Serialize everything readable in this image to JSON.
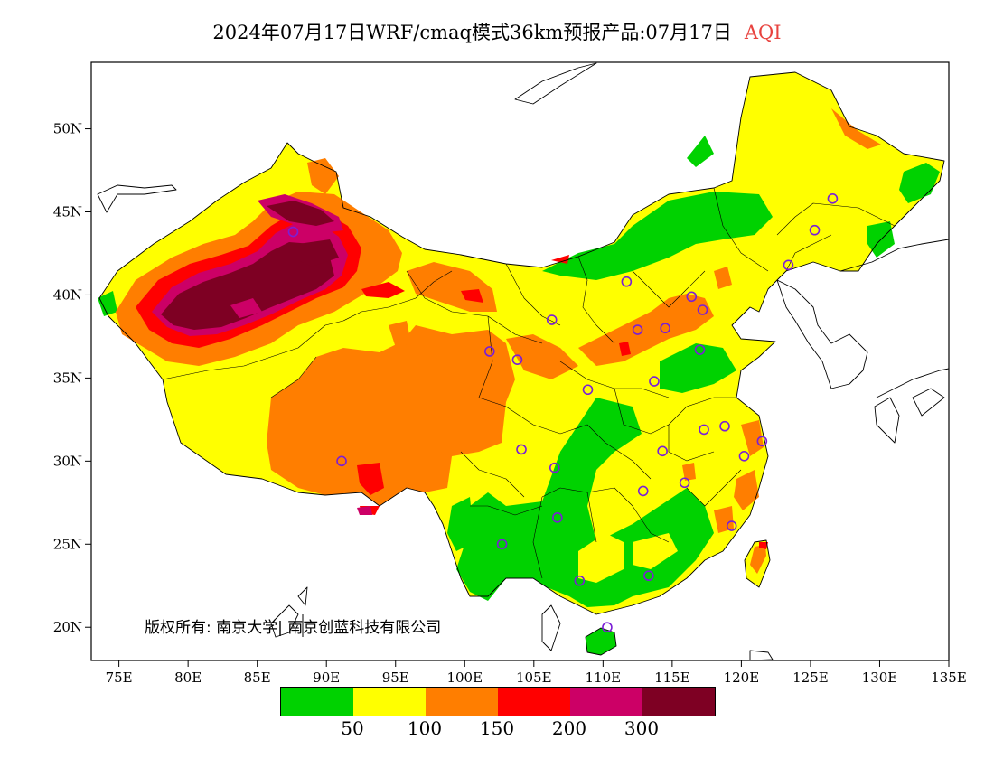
{
  "header": {
    "title": "2024年07月17日WRF/cmaq模式36km预报产品:07月17日",
    "subtitle": "AQI",
    "subtitle_color": "#e8433f"
  },
  "map": {
    "projection": "lon-lat",
    "lon_range": [
      73,
      135
    ],
    "lat_range": [
      18,
      54
    ],
    "lon_ticks": [
      "75E",
      "80E",
      "85E",
      "90E",
      "95E",
      "100E",
      "105E",
      "110E",
      "115E",
      "120E",
      "125E",
      "130E",
      "135E"
    ],
    "lat_ticks": [
      "20N",
      "25N",
      "30N",
      "35N",
      "40N",
      "45N",
      "50N"
    ],
    "copyright": "版权所有: 南京大学| 南京创蓝科技有限公司",
    "stations": [
      {
        "lon": 87.6,
        "lat": 43.8
      },
      {
        "lon": 91.1,
        "lat": 30.0
      },
      {
        "lon": 101.8,
        "lat": 36.6
      },
      {
        "lon": 103.8,
        "lat": 36.1
      },
      {
        "lon": 106.3,
        "lat": 38.5
      },
      {
        "lon": 104.1,
        "lat": 30.7
      },
      {
        "lon": 106.5,
        "lat": 29.6
      },
      {
        "lon": 106.7,
        "lat": 26.6
      },
      {
        "lon": 102.7,
        "lat": 25.0
      },
      {
        "lon": 108.3,
        "lat": 22.8
      },
      {
        "lon": 110.3,
        "lat": 20.0
      },
      {
        "lon": 108.9,
        "lat": 34.3
      },
      {
        "lon": 111.7,
        "lat": 40.8
      },
      {
        "lon": 112.5,
        "lat": 37.9
      },
      {
        "lon": 114.5,
        "lat": 38.0
      },
      {
        "lon": 116.4,
        "lat": 39.9
      },
      {
        "lon": 117.2,
        "lat": 39.1
      },
      {
        "lon": 117.0,
        "lat": 36.7
      },
      {
        "lon": 113.7,
        "lat": 34.8
      },
      {
        "lon": 114.3,
        "lat": 30.6
      },
      {
        "lon": 112.9,
        "lat": 28.2
      },
      {
        "lon": 115.9,
        "lat": 28.7
      },
      {
        "lon": 117.3,
        "lat": 31.9
      },
      {
        "lon": 118.8,
        "lat": 32.1
      },
      {
        "lon": 120.2,
        "lat": 30.3
      },
      {
        "lon": 121.5,
        "lat": 31.2
      },
      {
        "lon": 119.3,
        "lat": 26.1
      },
      {
        "lon": 113.3,
        "lat": 23.1
      },
      {
        "lon": 123.4,
        "lat": 41.8
      },
      {
        "lon": 125.3,
        "lat": 43.9
      },
      {
        "lon": 126.6,
        "lat": 45.8
      }
    ]
  },
  "legend": {
    "colors": [
      "#00d200",
      "#ffff00",
      "#ff7e00",
      "#ff0000",
      "#cc0066",
      "#7e0023"
    ],
    "ticks": [
      "50",
      "100",
      "150",
      "200",
      "300"
    ]
  }
}
